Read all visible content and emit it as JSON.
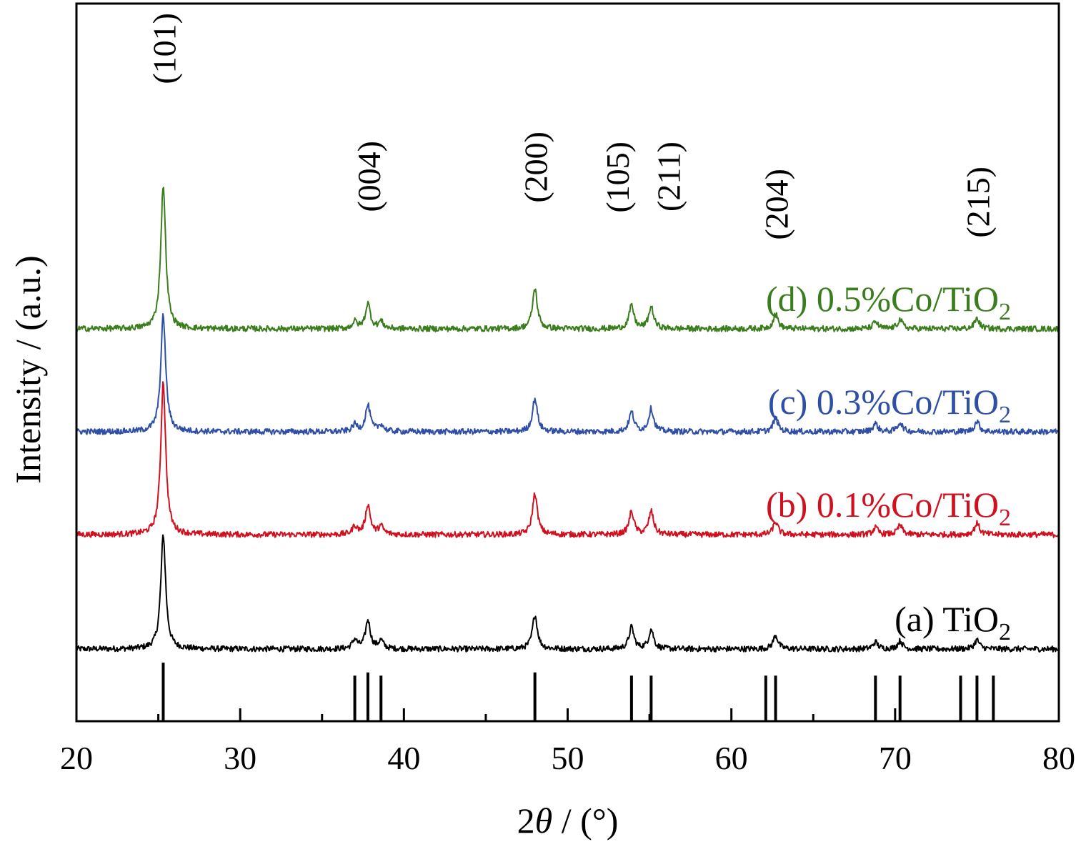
{
  "chart_data": {
    "type": "line",
    "title": "",
    "xlabel": {
      "prefix": "2",
      "symbol": "θ",
      "suffix": " / (°)"
    },
    "ylabel": "Intensity / (a.u.)",
    "xlim": [
      20,
      80
    ],
    "x_ticks": [
      20,
      30,
      40,
      50,
      60,
      70,
      80
    ],
    "x_minor_ticks": [
      25,
      35,
      45,
      55,
      65,
      75
    ],
    "y_ticks": [],
    "grid": false,
    "legend": "inline labels beside curves",
    "reference_lines": [
      25.3,
      37.0,
      37.8,
      38.6,
      48.0,
      53.9,
      55.1,
      62.1,
      62.7,
      68.8,
      70.3,
      74.0,
      75.0,
      76.0
    ],
    "reference_line_height": [
      0.9,
      0.7,
      0.75,
      0.7,
      0.75,
      0.7,
      0.7,
      0.7,
      0.7,
      0.7,
      0.7,
      0.7,
      0.7,
      0.7
    ],
    "plane_labels": [
      {
        "text": "(101)",
        "x": 25.3
      },
      {
        "text": "(004)",
        "x": 37.8
      },
      {
        "text": "(200)",
        "x": 48.0
      },
      {
        "text": "(105)",
        "x": 53.9
      },
      {
        "text": "(211)",
        "x": 55.1
      },
      {
        "text": "(204)",
        "x": 62.7
      },
      {
        "text": "(215)",
        "x": 75.0
      }
    ],
    "series": [
      {
        "label_main": "(a) TiO",
        "label_sub": "2",
        "color": "#000000",
        "baseline": 0.0,
        "peaks": [
          {
            "x": 25.3,
            "h": 1.0
          },
          {
            "x": 37.0,
            "h": 0.08
          },
          {
            "x": 37.8,
            "h": 0.25
          },
          {
            "x": 38.6,
            "h": 0.07
          },
          {
            "x": 48.0,
            "h": 0.3
          },
          {
            "x": 53.9,
            "h": 0.19
          },
          {
            "x": 55.1,
            "h": 0.17
          },
          {
            "x": 62.7,
            "h": 0.12
          },
          {
            "x": 68.8,
            "h": 0.06
          },
          {
            "x": 70.3,
            "h": 0.07
          },
          {
            "x": 75.0,
            "h": 0.08
          }
        ]
      },
      {
        "label_main": "(b) 0.1%Co/TiO",
        "label_sub": "2",
        "color": "#d0101e",
        "baseline": 1.0,
        "peaks": [
          {
            "x": 25.3,
            "h": 1.34
          },
          {
            "x": 37.0,
            "h": 0.07
          },
          {
            "x": 37.8,
            "h": 0.26
          },
          {
            "x": 38.6,
            "h": 0.07
          },
          {
            "x": 48.0,
            "h": 0.36
          },
          {
            "x": 53.9,
            "h": 0.2
          },
          {
            "x": 55.1,
            "h": 0.2
          },
          {
            "x": 62.7,
            "h": 0.11
          },
          {
            "x": 68.8,
            "h": 0.06
          },
          {
            "x": 70.3,
            "h": 0.08
          },
          {
            "x": 75.0,
            "h": 0.1
          }
        ]
      },
      {
        "label_main": "(c) 0.3%Co/TiO",
        "label_sub": "2",
        "color": "#2f4fa6",
        "baseline": 1.9,
        "peaks": [
          {
            "x": 25.3,
            "h": 1.02
          },
          {
            "x": 37.0,
            "h": 0.06
          },
          {
            "x": 37.8,
            "h": 0.23
          },
          {
            "x": 38.6,
            "h": 0.06
          },
          {
            "x": 48.0,
            "h": 0.29
          },
          {
            "x": 53.9,
            "h": 0.17
          },
          {
            "x": 55.1,
            "h": 0.2
          },
          {
            "x": 62.7,
            "h": 0.12
          },
          {
            "x": 68.8,
            "h": 0.07
          },
          {
            "x": 70.3,
            "h": 0.08
          },
          {
            "x": 75.0,
            "h": 0.09
          }
        ]
      },
      {
        "label_main": "(d) 0.5%Co/TiO",
        "label_sub": "2",
        "color": "#3a7d1c",
        "baseline": 2.8,
        "peaks": [
          {
            "x": 25.3,
            "h": 1.26
          },
          {
            "x": 37.0,
            "h": 0.06
          },
          {
            "x": 37.8,
            "h": 0.22
          },
          {
            "x": 38.6,
            "h": 0.06
          },
          {
            "x": 48.0,
            "h": 0.35
          },
          {
            "x": 53.9,
            "h": 0.2
          },
          {
            "x": 55.1,
            "h": 0.19
          },
          {
            "x": 62.7,
            "h": 0.13
          },
          {
            "x": 68.8,
            "h": 0.06
          },
          {
            "x": 70.3,
            "h": 0.08
          },
          {
            "x": 75.0,
            "h": 0.09
          }
        ]
      }
    ]
  }
}
